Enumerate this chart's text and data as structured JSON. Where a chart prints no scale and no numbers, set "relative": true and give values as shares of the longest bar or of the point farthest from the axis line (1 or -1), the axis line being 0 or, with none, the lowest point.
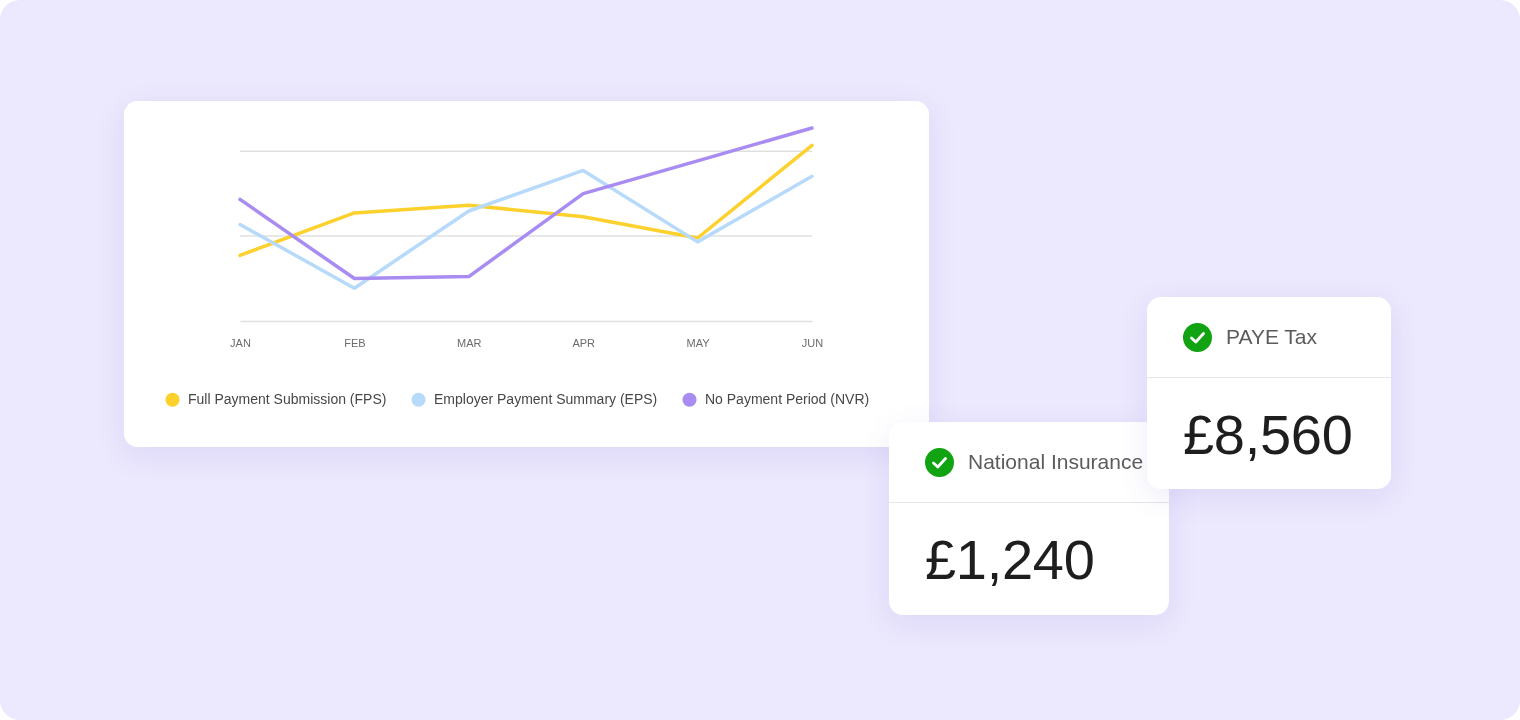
{
  "chart_data": [
    {
      "type": "line",
      "relative": true,
      "legend": "bottom",
      "categories": [
        "JAN",
        "FEB",
        "MAR",
        "APR",
        "MAY",
        "JUN"
      ],
      "series": [
        {
          "name": "Full Payment Submission (FPS)",
          "color": "#fdd12d",
          "values": [
            0.34,
            0.56,
            0.6,
            0.54,
            0.43,
            0.91
          ]
        },
        {
          "name": "Employer Payment Summary (EPS)",
          "color": "#b7dafb",
          "values": [
            0.5,
            0.17,
            0.57,
            0.78,
            0.41,
            0.75
          ]
        },
        {
          "name": "No Payment Period (NVR)",
          "color": "#a88cf2",
          "values": [
            0.63,
            0.22,
            0.23,
            0.66,
            0.83,
            1
          ]
        }
      ],
      "ref_lines": [
        {
          "axis": "y",
          "value": 0.44,
          "color": "#e0e0e0"
        },
        {
          "axis": "y",
          "value": 0.88,
          "color": "#e0e0e0"
        }
      ]
    },
    {
      "type": "other",
      "title": "PAYE Tax",
      "annotations": [
        "£8,560"
      ]
    },
    {
      "type": "other",
      "title": "National Insurance",
      "annotations": [
        "£1,240"
      ]
    }
  ]
}
